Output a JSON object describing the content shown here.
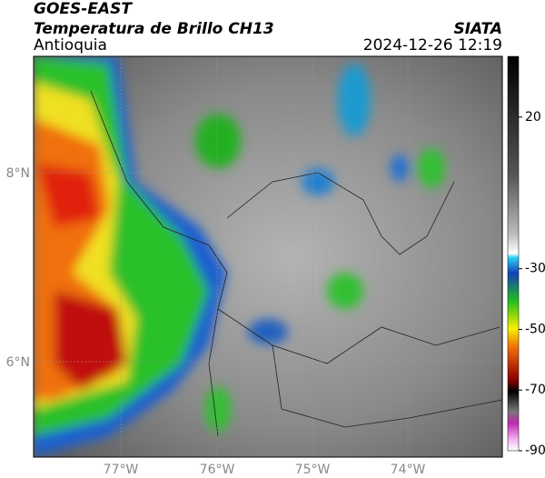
{
  "header": {
    "satellite": "GOES-EAST",
    "product": "Temperatura de Brillo CH13",
    "region": "Antioquia",
    "source": "SIATA",
    "timestamp": "2024-12-26 12:19"
  },
  "map": {
    "lon_labels": [
      "77°W",
      "76°W",
      "75°W",
      "74°W"
    ],
    "lat_labels": [
      "8°N",
      "6°N"
    ]
  },
  "colorbar": {
    "range": [
      -90,
      40
    ],
    "ticks": [
      20,
      -30,
      -50,
      -70,
      -90
    ]
  }
}
